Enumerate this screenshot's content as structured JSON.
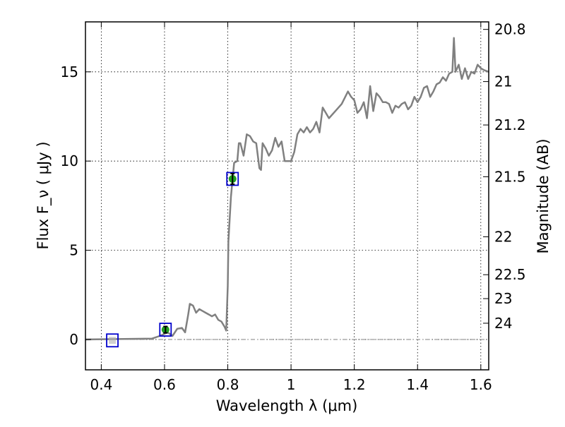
{
  "chart_data": {
    "type": "line",
    "xlabel": "Wavelength  λ (μm)",
    "ylabel": "Flux  F_ν  ( μJy )",
    "ylabel_right": "Magnitude (AB)",
    "xlim": [
      0.35,
      1.625
    ],
    "ylim": [
      -1.7,
      17.8
    ],
    "grid": true,
    "x_ticks": [
      {
        "v": 0.4,
        "label": "0.4"
      },
      {
        "v": 0.6,
        "label": "0.6"
      },
      {
        "v": 0.8,
        "label": "0.8"
      },
      {
        "v": 1.0,
        "label": "1"
      },
      {
        "v": 1.2,
        "label": "1.2"
      },
      {
        "v": 1.4,
        "label": "1.4"
      },
      {
        "v": 1.6,
        "label": "1.6"
      }
    ],
    "y_ticks": [
      {
        "v": 0,
        "label": "0"
      },
      {
        "v": 5,
        "label": "5"
      },
      {
        "v": 10,
        "label": "10"
      },
      {
        "v": 15,
        "label": "15"
      }
    ],
    "mag_ticks": [
      {
        "v": 20.8,
        "label": "20.8"
      },
      {
        "v": 21.0,
        "label": "21"
      },
      {
        "v": 21.2,
        "label": "21.2"
      },
      {
        "v": 21.5,
        "label": "21.5"
      },
      {
        "v": 22.0,
        "label": "22"
      },
      {
        "v": 22.5,
        "label": "22.5"
      },
      {
        "v": 23.0,
        "label": "23"
      },
      {
        "v": 24.0,
        "label": "24"
      }
    ],
    "series": [
      {
        "kind": "model-spectrum",
        "color": "#808080",
        "x": [
          0.35,
          0.56,
          0.585,
          0.61,
          0.625,
          0.64,
          0.655,
          0.665,
          0.675,
          0.68,
          0.69,
          0.7,
          0.71,
          0.72,
          0.73,
          0.74,
          0.75,
          0.76,
          0.77,
          0.78,
          0.79,
          0.795,
          0.8,
          0.802,
          0.81,
          0.82,
          0.83,
          0.835,
          0.84,
          0.85,
          0.86,
          0.87,
          0.88,
          0.89,
          0.9,
          0.905,
          0.91,
          0.92,
          0.93,
          0.94,
          0.95,
          0.96,
          0.97,
          0.98,
          0.99,
          1.0,
          1.01,
          1.02,
          1.03,
          1.04,
          1.05,
          1.06,
          1.07,
          1.08,
          1.09,
          1.1,
          1.12,
          1.14,
          1.16,
          1.18,
          1.19,
          1.2,
          1.21,
          1.22,
          1.23,
          1.24,
          1.25,
          1.26,
          1.27,
          1.28,
          1.29,
          1.3,
          1.31,
          1.32,
          1.33,
          1.34,
          1.35,
          1.36,
          1.37,
          1.38,
          1.39,
          1.4,
          1.41,
          1.42,
          1.43,
          1.44,
          1.45,
          1.46,
          1.47,
          1.48,
          1.49,
          1.5,
          1.51,
          1.515,
          1.52,
          1.53,
          1.54,
          1.55,
          1.56,
          1.57,
          1.58,
          1.59,
          1.6,
          1.61,
          1.625
        ],
        "y": [
          0.0,
          0.05,
          0.2,
          0.4,
          0.2,
          0.6,
          0.65,
          0.4,
          1.4,
          2.0,
          1.9,
          1.5,
          1.7,
          1.6,
          1.5,
          1.4,
          1.3,
          1.4,
          1.1,
          1.0,
          0.7,
          0.5,
          3.0,
          5.5,
          8.0,
          9.9,
          10.0,
          11.0,
          11.0,
          10.3,
          11.5,
          11.4,
          11.1,
          11.0,
          9.6,
          9.5,
          11.0,
          10.7,
          10.3,
          10.6,
          11.3,
          10.8,
          11.1,
          10.0,
          10.0,
          10.0,
          10.5,
          11.5,
          11.8,
          11.6,
          11.9,
          11.6,
          11.8,
          12.2,
          11.6,
          13.0,
          12.4,
          12.8,
          13.2,
          13.9,
          13.6,
          13.4,
          12.7,
          12.9,
          13.3,
          12.4,
          14.2,
          12.8,
          13.8,
          13.6,
          13.3,
          13.3,
          13.2,
          12.7,
          13.1,
          13.0,
          13.2,
          13.3,
          12.9,
          13.1,
          13.6,
          13.3,
          13.6,
          14.1,
          14.2,
          13.6,
          13.9,
          14.3,
          14.4,
          14.7,
          14.5,
          14.9,
          15.0,
          16.9,
          15.0,
          15.4,
          14.6,
          15.2,
          14.6,
          15.0,
          14.9,
          15.4,
          15.2,
          15.1,
          15.0
        ]
      }
    ],
    "photometry": [
      {
        "x": 0.435,
        "y": -0.05,
        "err": 0.0,
        "marker_color": "#b0b0b0"
      },
      {
        "x": 0.603,
        "y": 0.55,
        "err": 0.18,
        "marker_color": "#1f9f1f"
      },
      {
        "x": 0.815,
        "y": 9.0,
        "err": 0.3,
        "marker_color": "#1f9f1f"
      }
    ],
    "colors": {
      "spectrum": "#808080",
      "box": "#0000cc",
      "baseline": "#808080"
    }
  }
}
